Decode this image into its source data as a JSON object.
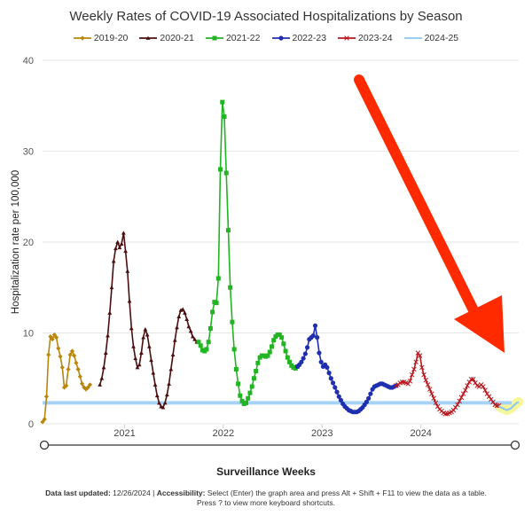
{
  "chart_data": {
    "type": "line",
    "title": "Weekly Rates of COVID-19 Associated Hospitalizations by Season",
    "xlabel": "Surveillance Weeks",
    "ylabel": "Hospitalization rate per 100,000",
    "ylim": [
      0,
      40
    ],
    "yticks": [
      0,
      10,
      20,
      30,
      40
    ],
    "xlim": [
      2020.17,
      2024.99
    ],
    "xticks": [
      2021,
      2022,
      2023,
      2024
    ],
    "grid": "horizontal",
    "legend_position": "top",
    "series": [
      {
        "name": "2019-20",
        "color": "#b8860b",
        "marker": "diamond",
        "x": [
          2020.17,
          2020.19,
          2020.21,
          2020.23,
          2020.25,
          2020.27,
          2020.29,
          2020.31,
          2020.33,
          2020.35,
          2020.37,
          2020.39,
          2020.41,
          2020.43,
          2020.45,
          2020.47,
          2020.49,
          2020.51,
          2020.53,
          2020.55,
          2020.57,
          2020.59,
          2020.61,
          2020.63,
          2020.65
        ],
        "y": [
          0.2,
          0.5,
          3.0,
          7.6,
          9.6,
          9.3,
          9.8,
          9.5,
          8.3,
          7.4,
          6.2,
          4.0,
          4.2,
          6.0,
          7.6,
          8.0,
          7.5,
          6.7,
          6.0,
          5.2,
          4.4,
          4.0,
          3.8,
          4.0,
          4.3
        ]
      },
      {
        "name": "2020-21",
        "color": "#4a0e0e",
        "marker": "triangle",
        "x": [
          2020.75,
          2020.77,
          2020.79,
          2020.81,
          2020.83,
          2020.85,
          2020.87,
          2020.89,
          2020.91,
          2020.93,
          2020.95,
          2020.97,
          2020.99,
          2021.01,
          2021.03,
          2021.05,
          2021.07,
          2021.09,
          2021.11,
          2021.13,
          2021.15,
          2021.17,
          2021.19,
          2021.21,
          2021.23,
          2021.25,
          2021.27,
          2021.29,
          2021.31,
          2021.33,
          2021.35,
          2021.37,
          2021.39,
          2021.41,
          2021.43,
          2021.45,
          2021.47,
          2021.49,
          2021.51,
          2021.53,
          2021.55,
          2021.57,
          2021.59,
          2021.61,
          2021.63,
          2021.65,
          2021.67,
          2021.69,
          2021.71,
          2021.73
        ],
        "y": [
          4.3,
          5.0,
          6.2,
          7.8,
          9.7,
          12.2,
          15.0,
          17.9,
          19.3,
          20.0,
          19.4,
          19.8,
          21.0,
          19.0,
          16.8,
          13.5,
          10.5,
          8.5,
          7.2,
          6.2,
          6.5,
          7.8,
          9.5,
          10.4,
          9.8,
          8.5,
          7.0,
          5.6,
          4.3,
          3.1,
          2.3,
          1.9,
          1.8,
          2.3,
          3.2,
          4.4,
          6.0,
          7.6,
          9.2,
          10.6,
          11.8,
          12.5,
          12.6,
          12.2,
          11.5,
          10.7,
          10.2,
          9.6,
          9.3,
          9.0
        ]
      },
      {
        "name": "2021-22",
        "color": "#22b422",
        "marker": "square",
        "x": [
          2021.75,
          2021.77,
          2021.79,
          2021.81,
          2021.83,
          2021.85,
          2021.87,
          2021.89,
          2021.91,
          2021.93,
          2021.95,
          2021.97,
          2021.99,
          2022.01,
          2022.03,
          2022.05,
          2022.07,
          2022.09,
          2022.11,
          2022.13,
          2022.15,
          2022.17,
          2022.19,
          2022.21,
          2022.23,
          2022.25,
          2022.27,
          2022.29,
          2022.31,
          2022.33,
          2022.35,
          2022.37,
          2022.39,
          2022.41,
          2022.43,
          2022.45,
          2022.47,
          2022.49,
          2022.51,
          2022.53,
          2022.55,
          2022.57,
          2022.59,
          2022.61,
          2022.63,
          2022.65,
          2022.67,
          2022.69,
          2022.71,
          2022.73,
          2022.75
        ],
        "y": [
          9.0,
          8.6,
          8.1,
          8.0,
          8.2,
          9.0,
          10.5,
          12.3,
          13.4,
          13.3,
          16.0,
          28.0,
          35.4,
          33.8,
          27.6,
          21.3,
          15.0,
          11.2,
          8.2,
          6.0,
          4.4,
          3.1,
          2.5,
          2.2,
          2.3,
          2.8,
          3.4,
          4.1,
          5.0,
          5.8,
          6.7,
          7.3,
          7.5,
          7.5,
          7.4,
          7.5,
          7.9,
          8.5,
          9.2,
          9.6,
          9.8,
          9.8,
          9.5,
          8.8,
          8.0,
          7.3,
          6.8,
          6.4,
          6.2,
          6.1,
          6.3
        ]
      },
      {
        "name": "2022-23",
        "color": "#1f2fb0",
        "marker": "circle",
        "x": [
          2022.75,
          2022.77,
          2022.79,
          2022.81,
          2022.83,
          2022.85,
          2022.87,
          2022.89,
          2022.91,
          2022.93,
          2022.95,
          2022.97,
          2022.99,
          2023.01,
          2023.03,
          2023.05,
          2023.07,
          2023.09,
          2023.11,
          2023.13,
          2023.15,
          2023.17,
          2023.19,
          2023.21,
          2023.23,
          2023.25,
          2023.27,
          2023.29,
          2023.31,
          2023.33,
          2023.35,
          2023.37,
          2023.39,
          2023.41,
          2023.43,
          2023.45,
          2023.47,
          2023.49,
          2023.51,
          2023.53,
          2023.55,
          2023.57,
          2023.59,
          2023.61,
          2023.63,
          2023.65,
          2023.67,
          2023.69,
          2023.71,
          2023.73,
          2023.75
        ],
        "y": [
          6.3,
          6.5,
          6.8,
          7.2,
          7.7,
          8.4,
          9.3,
          9.5,
          9.7,
          10.8,
          9.5,
          7.8,
          6.8,
          6.3,
          6.5,
          6.2,
          5.6,
          5.0,
          4.5,
          4.0,
          3.5,
          3.0,
          2.6,
          2.2,
          1.9,
          1.7,
          1.5,
          1.4,
          1.3,
          1.3,
          1.3,
          1.4,
          1.6,
          1.8,
          2.1,
          2.4,
          2.8,
          3.3,
          3.8,
          4.1,
          4.2,
          4.3,
          4.4,
          4.4,
          4.3,
          4.2,
          4.1,
          4.0,
          4.0,
          4.1,
          4.2
        ]
      },
      {
        "name": "2023-24",
        "color": "#b8181e",
        "marker": "cross",
        "x": [
          2023.75,
          2023.77,
          2023.79,
          2023.81,
          2023.83,
          2023.85,
          2023.87,
          2023.89,
          2023.91,
          2023.93,
          2023.95,
          2023.97,
          2023.99,
          2024.01,
          2024.03,
          2024.05,
          2024.07,
          2024.09,
          2024.11,
          2024.13,
          2024.15,
          2024.17,
          2024.19,
          2024.21,
          2024.23,
          2024.25,
          2024.27,
          2024.29,
          2024.31,
          2024.33,
          2024.35,
          2024.37,
          2024.39,
          2024.41,
          2024.43,
          2024.45,
          2024.47,
          2024.49,
          2024.51,
          2024.53,
          2024.55,
          2024.57,
          2024.59,
          2024.61,
          2024.63,
          2024.65,
          2024.67,
          2024.69,
          2024.71,
          2024.73,
          2024.75,
          2024.77,
          2024.79
        ],
        "y": [
          4.2,
          4.3,
          4.5,
          4.6,
          4.6,
          4.5,
          4.4,
          4.7,
          5.4,
          6.0,
          6.8,
          7.8,
          7.5,
          6.2,
          5.4,
          4.8,
          4.3,
          3.8,
          3.3,
          2.8,
          2.3,
          1.9,
          1.6,
          1.4,
          1.2,
          1.1,
          1.1,
          1.2,
          1.3,
          1.5,
          1.8,
          2.1,
          2.5,
          2.9,
          3.3,
          3.7,
          4.2,
          4.6,
          4.9,
          4.9,
          4.5,
          4.2,
          4.1,
          4.3,
          4.1,
          3.7,
          3.3,
          3.0,
          2.7,
          2.4,
          2.1,
          2.0,
          2.0
        ]
      },
      {
        "name": "2024-25",
        "color": "#8ac7f0",
        "marker": "none",
        "x": [
          2024.79,
          2024.81,
          2024.83,
          2024.85,
          2024.87,
          2024.89,
          2024.91,
          2024.93,
          2024.95,
          2024.97,
          2024.99
        ],
        "y": [
          2.0,
          1.8,
          1.7,
          1.6,
          1.5,
          1.6,
          1.7,
          1.9,
          2.1,
          2.3,
          2.4
        ]
      }
    ],
    "reference_line": {
      "y": 2.3,
      "color": "#a6d2f5"
    }
  },
  "footer": {
    "updated_label": "Data last updated:",
    "updated_value": "12/26/2024",
    "separator": "|",
    "accessibility_label": "Accessibility:",
    "line1_text": "Select (Enter) the graph area and press Alt + Shift + F11 to view the data as a table.",
    "line2_text": "Press ? to view more keyboard shortcuts."
  },
  "colors": {
    "arrow": "#ff2a00",
    "highlight": "#f5f58a",
    "grid": "#e6e6e6"
  }
}
